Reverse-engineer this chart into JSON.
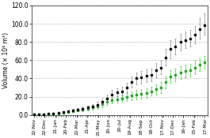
{
  "ylabel": "Volume (× 10⁶ m³)",
  "ylim": [
    0.0,
    120.0
  ],
  "yticks": [
    0.0,
    20.0,
    40.0,
    60.0,
    80.0,
    100.0,
    120.0
  ],
  "xlabels": [
    "22-Nov",
    "22-Dec",
    "21-Jan",
    "20-Feb",
    "22-Mar",
    "21-Apr",
    "21-May",
    "20-Jun",
    "20-Jul",
    "19-Aug",
    "18-Sep",
    "18-Oct",
    "17-Nov",
    "17-Dec",
    "16-Jan",
    "15-Feb",
    "17-Mar"
  ],
  "black_y": [
    0.2,
    0.5,
    0.8,
    1.2,
    1.8,
    2.5,
    3.2,
    4.0,
    5.0,
    6.0,
    7.0,
    8.0,
    9.5,
    11.0,
    14.0,
    18.0,
    22.5,
    25.0,
    26.0,
    30.0,
    36.0,
    40.0,
    41.5,
    43.0,
    44.0,
    49.0,
    52.0,
    63.0,
    72.0,
    75.0,
    80.0,
    82.0,
    84.0,
    88.0,
    94.0,
    98.5
  ],
  "black_yerr_lo": [
    0.1,
    0.2,
    0.3,
    0.4,
    0.5,
    0.6,
    0.8,
    1.0,
    1.2,
    1.5,
    1.8,
    2.0,
    2.5,
    3.0,
    3.5,
    4.0,
    4.5,
    4.5,
    4.5,
    5.0,
    6.0,
    6.5,
    7.0,
    7.0,
    7.0,
    7.5,
    7.5,
    9.0,
    10.0,
    9.0,
    9.0,
    9.0,
    9.0,
    9.5,
    10.0,
    10.5
  ],
  "black_yerr_hi": [
    0.1,
    0.2,
    0.3,
    0.4,
    0.5,
    0.6,
    0.8,
    1.0,
    1.2,
    1.5,
    1.8,
    2.0,
    2.5,
    3.0,
    3.5,
    4.0,
    4.5,
    4.5,
    4.5,
    5.0,
    6.0,
    6.5,
    7.0,
    7.0,
    7.0,
    7.5,
    7.5,
    9.0,
    10.0,
    9.0,
    9.0,
    9.0,
    9.0,
    9.5,
    12.0,
    13.0
  ],
  "green_y": [
    0.1,
    0.3,
    0.5,
    0.8,
    1.2,
    1.8,
    2.5,
    3.2,
    4.0,
    5.0,
    6.0,
    7.0,
    8.0,
    9.5,
    11.5,
    14.5,
    16.0,
    17.0,
    17.5,
    19.5,
    21.0,
    22.0,
    23.0,
    24.0,
    26.0,
    28.0,
    30.0,
    36.0,
    42.0,
    44.0,
    46.5,
    48.0,
    49.0,
    52.0,
    55.0,
    58.0
  ],
  "green_yerr_lo": [
    0.1,
    0.1,
    0.2,
    0.3,
    0.4,
    0.5,
    0.7,
    0.9,
    1.1,
    1.4,
    1.7,
    2.0,
    2.5,
    2.5,
    3.0,
    3.5,
    3.5,
    3.5,
    3.5,
    4.0,
    4.5,
    5.0,
    5.0,
    5.0,
    5.0,
    5.5,
    6.0,
    6.5,
    7.0,
    7.0,
    7.0,
    7.0,
    7.0,
    7.0,
    7.0,
    7.0
  ],
  "green_yerr_hi": [
    0.1,
    0.1,
    0.2,
    0.3,
    0.4,
    0.5,
    0.7,
    0.9,
    1.1,
    1.4,
    1.7,
    2.0,
    2.5,
    2.5,
    3.0,
    3.5,
    3.5,
    3.5,
    3.5,
    4.0,
    4.5,
    5.0,
    5.0,
    5.0,
    5.0,
    5.5,
    6.0,
    6.5,
    7.0,
    7.0,
    7.0,
    7.0,
    7.0,
    7.0,
    7.0,
    7.0
  ],
  "black_color": "#111111",
  "green_color": "#22aa22",
  "errorbar_color_black": "#888888",
  "errorbar_color_green": "#44cc44",
  "bg_color": "#ffffff",
  "grid_color": "#bbbbbb",
  "tick_label_fontsize": 4.2,
  "ylabel_fontsize": 5.5,
  "ytick_fontsize": 5.5
}
